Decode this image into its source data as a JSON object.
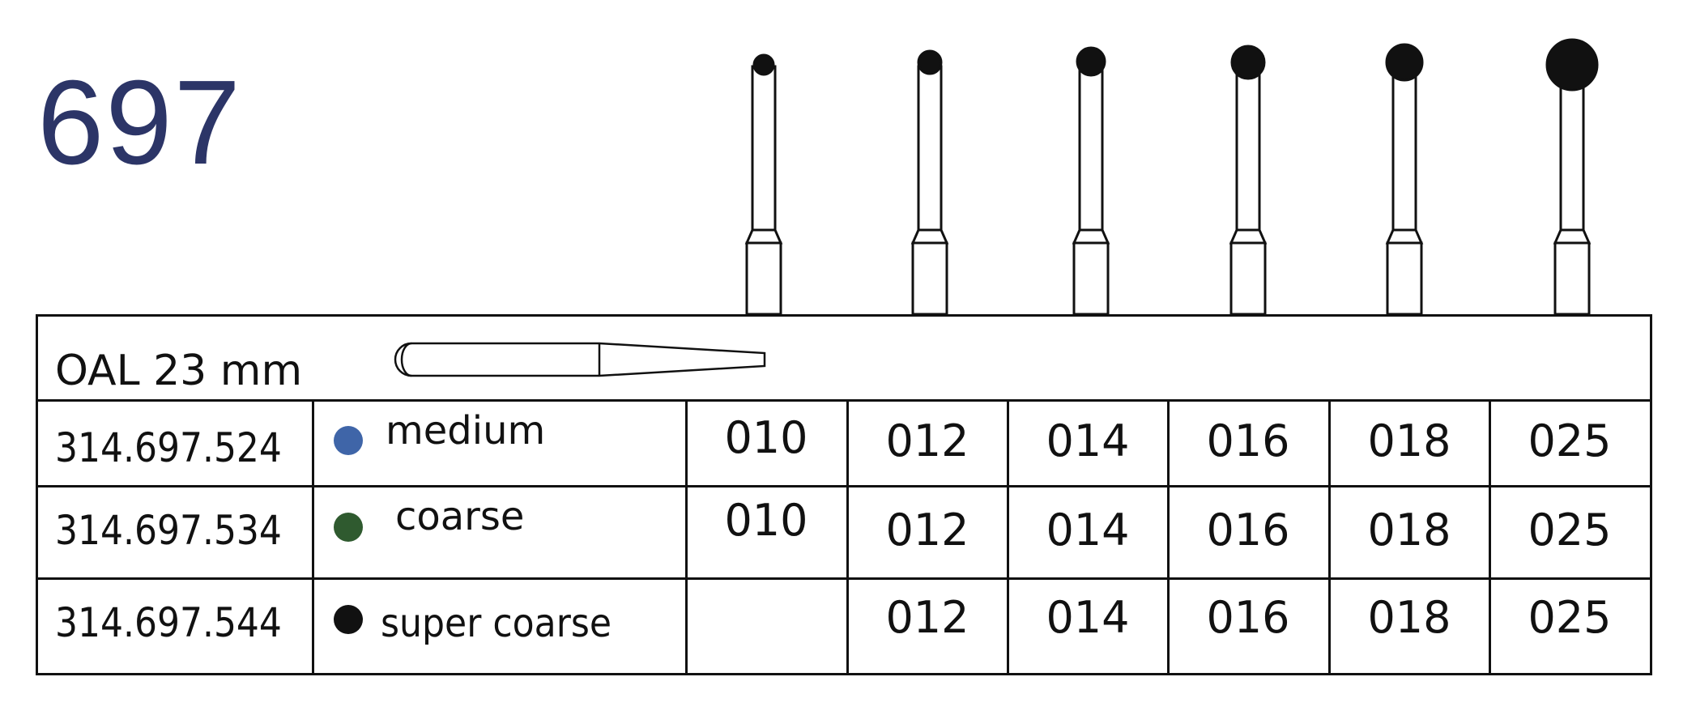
{
  "product_code": "697",
  "oal_label": "OAL 23 mm",
  "rows": [
    {
      "article": "314.697.524",
      "grit": "medium",
      "dot_color": "#3f65a8",
      "sizes": [
        "010",
        "012",
        "014",
        "016",
        "018",
        "025"
      ]
    },
    {
      "article": "314.697.534",
      "grit": "coarse",
      "dot_color": "#2f5a2f",
      "sizes": [
        "010",
        "012",
        "014",
        "016",
        "018",
        "025"
      ]
    },
    {
      "article": "314.697.544",
      "grit": "super coarse",
      "dot_color": "#111111",
      "sizes": [
        "",
        "012",
        "014",
        "016",
        "018",
        "025"
      ]
    }
  ],
  "colors": {
    "code_text": "#2c3567",
    "line": "#111111"
  },
  "bur_head_size_labels": [
    "010",
    "012",
    "014",
    "016",
    "018",
    "025"
  ]
}
